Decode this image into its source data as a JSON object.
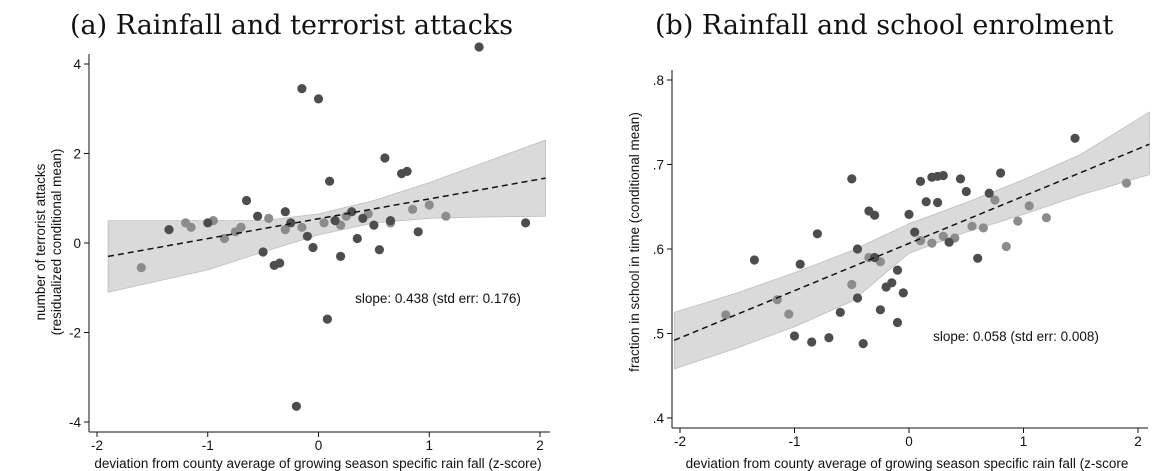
{
  "panels": [
    {
      "title": "(a) Rainfall and terrorist attacks",
      "chart_data": {
        "type": "scatter",
        "title": "(a) Rainfall and terrorist attacks",
        "xlabel": "deviation from county average of growing season specific rain fall (z-score)",
        "ylabel_line1": "number of terrorist attacks",
        "ylabel_line2": "(residualized conditional mean)",
        "xlim": [
          -2,
          2
        ],
        "ylim": [
          -4,
          4
        ],
        "xticks": [
          "-2",
          "-1",
          "0",
          "1",
          "2"
        ],
        "yticks": [
          "-4",
          "-2",
          "0",
          "2",
          "4"
        ],
        "annotation": "slope: 0.438 (std err: 0.176)",
        "fit": {
          "x": [
            -1.9,
            2.05
          ],
          "y": [
            -0.3,
            1.45
          ]
        },
        "band_upper": {
          "x": [
            -1.9,
            -1.0,
            -0.5,
            0.0,
            0.5,
            1.0,
            1.5,
            2.05
          ],
          "y": [
            0.5,
            0.5,
            0.5,
            0.65,
            0.95,
            1.35,
            1.8,
            2.3
          ]
        },
        "band_lower": {
          "x": [
            -1.9,
            -1.0,
            -0.5,
            0.0,
            0.5,
            1.0,
            1.5,
            2.05
          ],
          "y": [
            -1.1,
            -0.6,
            -0.2,
            0.18,
            0.45,
            0.55,
            0.58,
            0.6
          ]
        },
        "points_dark": {
          "x": [
            -1.35,
            -1.0,
            -0.65,
            -0.55,
            -0.4,
            -0.35,
            -0.3,
            -0.25,
            -0.15,
            -0.1,
            -0.05,
            0.0,
            0.1,
            0.15,
            0.2,
            0.3,
            0.35,
            0.4,
            0.5,
            0.55,
            0.6,
            0.65,
            0.75,
            0.8,
            0.9,
            1.45,
            1.87,
            -0.2,
            0.08,
            -0.5
          ],
          "y": [
            0.3,
            0.45,
            0.95,
            0.6,
            -0.5,
            -0.45,
            0.7,
            0.45,
            3.45,
            0.15,
            -0.1,
            3.22,
            1.38,
            0.5,
            -0.3,
            0.7,
            0.1,
            0.55,
            0.4,
            -0.15,
            1.9,
            0.5,
            1.55,
            1.6,
            0.25,
            4.38,
            0.45,
            -3.65,
            -1.7,
            -0.2
          ]
        },
        "points_light": {
          "x": [
            -1.6,
            -1.2,
            -1.15,
            -0.95,
            -0.85,
            -0.75,
            -0.7,
            -0.45,
            -0.3,
            -0.15,
            0.05,
            0.2,
            0.25,
            0.45,
            0.65,
            0.85,
            1.0,
            1.15
          ],
          "y": [
            -0.55,
            0.45,
            0.35,
            0.5,
            0.1,
            0.25,
            0.35,
            0.55,
            0.3,
            0.35,
            0.45,
            0.4,
            0.6,
            0.65,
            0.45,
            0.75,
            0.85,
            0.6
          ]
        }
      }
    },
    {
      "title": "(b) Rainfall and school enrolment",
      "chart_data": {
        "type": "scatter",
        "title": "(b) Rainfall and school enrolment",
        "xlabel": "deviation from county average of growing season specific rain fall (z-score",
        "ylabel_line1": "fraction in school in time (conditional mean)",
        "ylabel_line2": "",
        "xlim": [
          -2,
          2
        ],
        "ylim": [
          0.4,
          0.8
        ],
        "xticks": [
          "-2",
          "-1",
          "0",
          "1",
          "2"
        ],
        "yticks": [
          ".4",
          ".5",
          ".6",
          ".7",
          ".8"
        ],
        "annotation": "slope: 0.058 (std err: 0.008)",
        "fit": {
          "x": [
            -2.05,
            2.1
          ],
          "y": [
            0.492,
            0.724
          ]
        },
        "band_upper": {
          "x": [
            -2.05,
            -1.5,
            -1.0,
            -0.5,
            0.0,
            0.5,
            1.0,
            1.5,
            2.1
          ],
          "y": [
            0.525,
            0.548,
            0.572,
            0.598,
            0.63,
            0.655,
            0.682,
            0.712,
            0.762
          ]
        },
        "band_lower": {
          "x": [
            -2.05,
            -1.5,
            -1.0,
            -0.5,
            0.0,
            0.5,
            1.0,
            1.5,
            2.1
          ],
          "y": [
            0.458,
            0.483,
            0.508,
            0.538,
            0.595,
            0.62,
            0.641,
            0.664,
            0.688
          ]
        },
        "points_dark": {
          "x": [
            -1.35,
            -1.0,
            -0.95,
            -0.85,
            -0.8,
            -0.7,
            -0.6,
            -0.5,
            -0.45,
            -0.4,
            -0.35,
            -0.3,
            -0.25,
            -0.2,
            -0.15,
            -0.1,
            -0.05,
            0.0,
            0.1,
            0.15,
            0.2,
            0.25,
            0.3,
            0.35,
            0.45,
            0.5,
            0.6,
            0.7,
            0.8,
            1.45,
            -0.45,
            -0.3,
            -0.1,
            0.05,
            0.25
          ],
          "y": [
            0.587,
            0.497,
            0.582,
            0.49,
            0.618,
            0.495,
            0.525,
            0.683,
            0.542,
            0.488,
            0.645,
            0.64,
            0.528,
            0.555,
            0.56,
            0.513,
            0.548,
            0.641,
            0.68,
            0.656,
            0.685,
            0.686,
            0.687,
            0.608,
            0.683,
            0.668,
            0.589,
            0.666,
            0.69,
            0.731,
            0.6,
            0.59,
            0.575,
            0.62,
            0.655
          ]
        },
        "points_light": {
          "x": [
            -1.6,
            -1.15,
            -1.05,
            -0.5,
            -0.35,
            -0.25,
            0.1,
            0.2,
            0.3,
            0.4,
            0.55,
            0.65,
            0.75,
            0.85,
            0.95,
            1.05,
            1.2,
            1.9
          ],
          "y": [
            0.522,
            0.54,
            0.523,
            0.558,
            0.59,
            0.585,
            0.61,
            0.607,
            0.615,
            0.613,
            0.627,
            0.625,
            0.658,
            0.603,
            0.633,
            0.651,
            0.637,
            0.678
          ]
        }
      }
    }
  ]
}
